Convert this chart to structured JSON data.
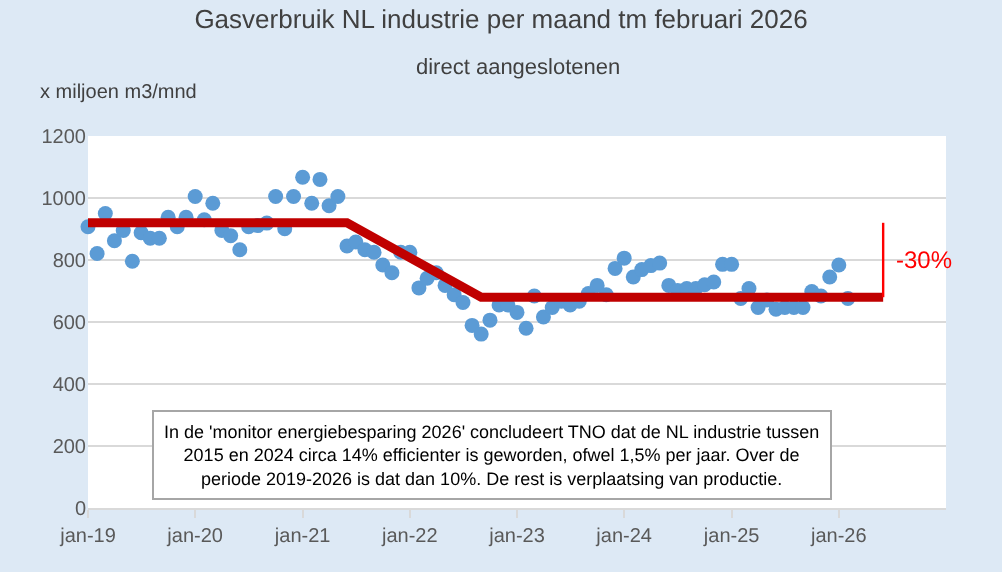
{
  "chart_data": {
    "type": "scatter",
    "title": "Gasverbruik NL industrie per maand tm februari 2026",
    "subtitle": "direct aangeslotenen",
    "ylabel": "x miljoen m3/mnd",
    "x": [
      "2019-01",
      "2019-02",
      "2019-03",
      "2019-04",
      "2019-05",
      "2019-06",
      "2019-07",
      "2019-08",
      "2019-09",
      "2019-10",
      "2019-11",
      "2019-12",
      "2020-01",
      "2020-02",
      "2020-03",
      "2020-04",
      "2020-05",
      "2020-06",
      "2020-07",
      "2020-08",
      "2020-09",
      "2020-10",
      "2020-11",
      "2020-12",
      "2021-01",
      "2021-02",
      "2021-03",
      "2021-04",
      "2021-05",
      "2021-06",
      "2021-07",
      "2021-08",
      "2021-09",
      "2021-10",
      "2021-11",
      "2021-12",
      "2022-01",
      "2022-02",
      "2022-03",
      "2022-04",
      "2022-05",
      "2022-06",
      "2022-07",
      "2022-08",
      "2022-09",
      "2022-10",
      "2022-11",
      "2022-12",
      "2023-01",
      "2023-02",
      "2023-03",
      "2023-04",
      "2023-05",
      "2023-06",
      "2023-07",
      "2023-08",
      "2023-09",
      "2023-10",
      "2023-11",
      "2023-12",
      "2024-01",
      "2024-02",
      "2024-03",
      "2024-04",
      "2024-05",
      "2024-06",
      "2024-07",
      "2024-08",
      "2024-09",
      "2024-10",
      "2024-11",
      "2024-12",
      "2025-01",
      "2025-02",
      "2025-03",
      "2025-04",
      "2025-05",
      "2025-06",
      "2025-07",
      "2025-08",
      "2025-09",
      "2025-10",
      "2025-11",
      "2025-12",
      "2026-01",
      "2026-02"
    ],
    "series": [
      {
        "color": "#5b9bd5",
        "marker": "circle",
        "values": [
          907,
          821,
          950,
          862,
          895,
          796,
          888,
          870,
          870,
          938,
          907,
          938,
          1005,
          930,
          983,
          895,
          878,
          833,
          907,
          911,
          919,
          1005,
          901,
          1005,
          1067,
          983,
          1060,
          975,
          1005,
          845,
          858,
          833,
          825,
          784,
          759,
          825,
          825,
          710,
          741,
          759,
          718,
          688,
          663,
          589,
          561,
          606,
          655,
          655,
          631,
          580,
          684,
          616,
          647,
          667,
          655,
          667,
          692,
          718,
          688,
          773,
          806,
          745,
          769,
          782,
          790,
          718,
          702,
          708,
          708,
          720,
          729,
          786,
          786,
          676,
          708,
          647,
          671,
          641,
          647,
          647,
          647,
          698,
          684,
          745,
          784,
          676
        ]
      },
      {
        "type": "line",
        "color": "#c00000",
        "x": [
          "2019-01",
          "2021-06",
          "2022-09",
          "2026-06"
        ],
        "values": [
          920,
          920,
          680,
          680
        ]
      }
    ],
    "annotations": [
      "-30%",
      "In de 'monitor energiebesparing 2026' concludeert TNO dat de NL industrie tussen 2015 en 2024 circa 14% efficienter is geworden, ofwel 1,5% per jaar. Over de periode 2019-2026 is dat dan 10%. De rest is verplaatsing van productie."
    ],
    "xlim": [
      "2019-01-01",
      "2027-01-01"
    ],
    "xticks": [
      {
        "value": "2019-01",
        "label": "jan-19"
      },
      {
        "value": "2020-01",
        "label": "jan-20"
      },
      {
        "value": "2021-01",
        "label": "jan-21"
      },
      {
        "value": "2022-01",
        "label": "jan-22"
      },
      {
        "value": "2023-01",
        "label": "jan-23"
      },
      {
        "value": "2024-01",
        "label": "jan-24"
      },
      {
        "value": "2025-01",
        "label": "jan-25"
      },
      {
        "value": "2026-01",
        "label": "jan-26"
      }
    ],
    "ylim": [
      0,
      1200
    ],
    "yticks": [
      0,
      200,
      400,
      600,
      800,
      1000,
      1200
    ],
    "grid": "y"
  }
}
